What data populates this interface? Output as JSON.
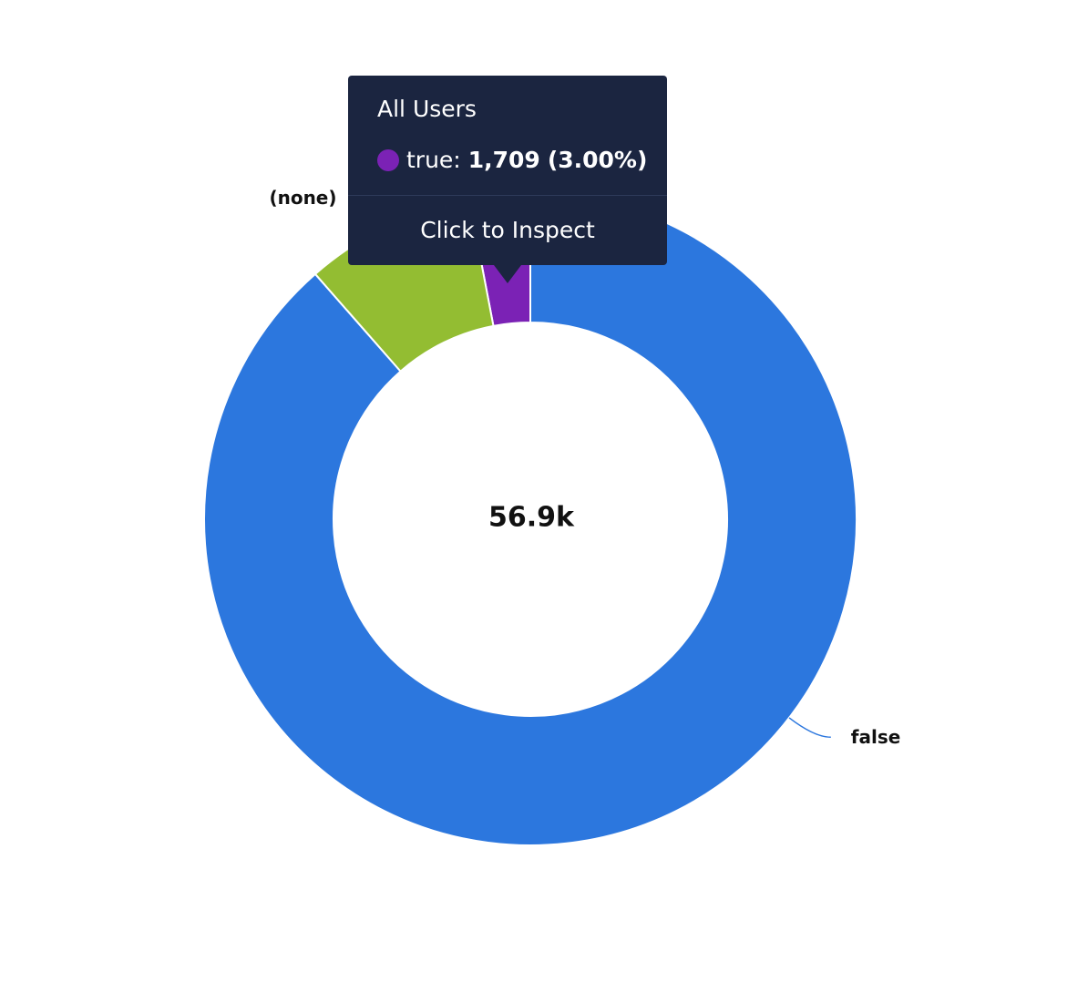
{
  "chart_data": {
    "type": "pie",
    "style": "donut",
    "center_label": "56.9k",
    "categories": [
      "true",
      "false",
      "(none)"
    ],
    "values": [
      1709,
      50380,
      4811
    ],
    "colors": [
      "#7b22b5",
      "#2c77de",
      "#93bd32"
    ],
    "labels_shown": [
      "(none)",
      "false"
    ],
    "legend": "none"
  },
  "tooltip": {
    "title": "All Users",
    "series": "true:",
    "value": "1,709",
    "percent": "(3.00%)",
    "dot_color": "#7b22b5",
    "action": "Click to Inspect"
  }
}
